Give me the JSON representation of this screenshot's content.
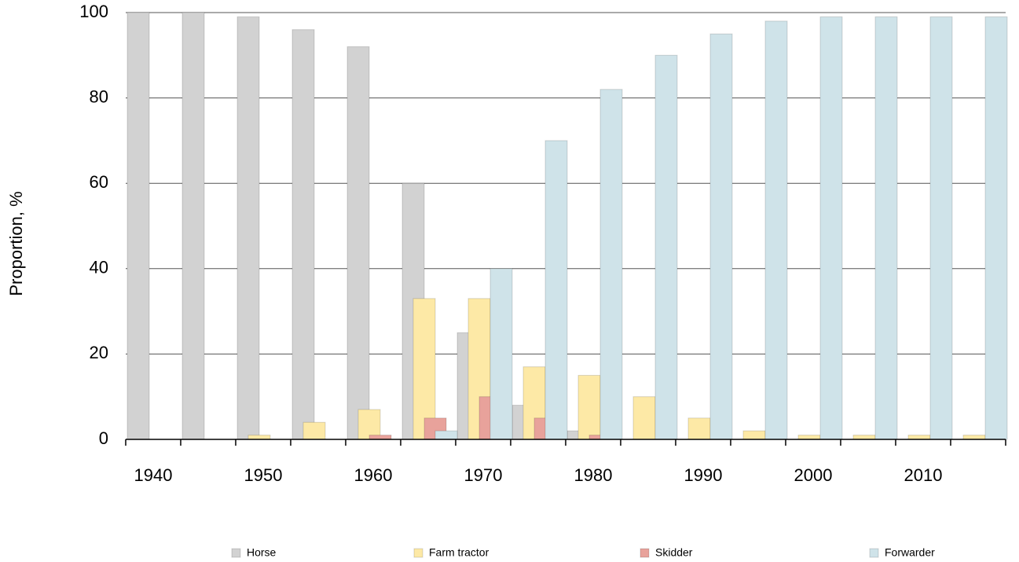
{
  "chart_data": {
    "type": "bar",
    "y_label": "Proportion, %",
    "categories": [
      "1940",
      null,
      "1950",
      null,
      "1960",
      null,
      "1970",
      null,
      "1980",
      null,
      "1990",
      null,
      "2000",
      null,
      "2010",
      null
    ],
    "series": [
      {
        "name": "Horse",
        "color": "#d2d2d2",
        "values": [
          100,
          100,
          99,
          96,
          92,
          60,
          25,
          8,
          2,
          0,
          0,
          0,
          0,
          0,
          0,
          0
        ]
      },
      {
        "name": "Farm tractor",
        "color": "#fde9a6",
        "values": [
          0,
          0,
          1,
          4,
          7,
          33,
          33,
          17,
          15,
          10,
          5,
          2,
          1,
          1,
          1,
          1
        ]
      },
      {
        "name": "Skidder",
        "color": "#e8a29b",
        "values": [
          0,
          0,
          0,
          0,
          1,
          5,
          10,
          5,
          1,
          0,
          0,
          0,
          0,
          0,
          0,
          0
        ]
      },
      {
        "name": "Forwarder",
        "color": "#cfe3e9",
        "values": [
          0,
          0,
          0,
          0,
          0,
          2,
          40,
          70,
          82,
          90,
          95,
          98,
          99,
          99,
          99,
          99
        ]
      }
    ],
    "ylim": [
      0,
      100
    ],
    "yticks": [
      0,
      20,
      40,
      60,
      80,
      100
    ],
    "grid": true,
    "legend": "bottom"
  }
}
